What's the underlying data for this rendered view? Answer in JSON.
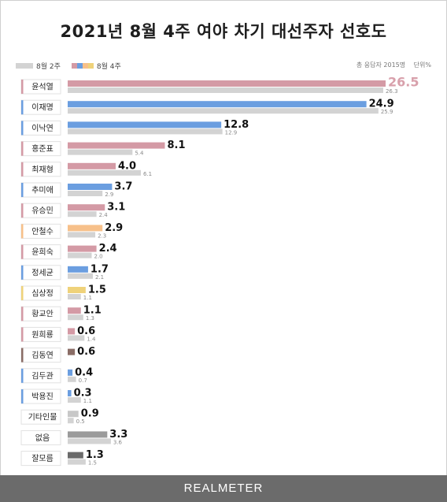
{
  "title": "2021년 8월 4주 여야 차기 대선주자 선호도",
  "legend": {
    "previous_label": "8월 2주",
    "current_label": "8월 4주"
  },
  "note": {
    "sample": "총 응답자 2015명",
    "unit": "단위%"
  },
  "footer": {
    "brand": "REALMETER"
  },
  "colors": {
    "pp": "#d49aa5",
    "dp": "#6b9ee0",
    "orange": "#f7c08a",
    "yellow": "#efd27a",
    "brown": "#8a6d66",
    "other": "#c8c8c8",
    "none": "#9b9b9b",
    "dontknow": "#6a6a6a",
    "previous": "#d3d3d3",
    "highlight": "#d8a0ab"
  },
  "chart_data": {
    "type": "bar",
    "orientation": "horizontal",
    "title": "2021년 8월 4주 여야 차기 대선주자 선호도",
    "unit": "%",
    "categories": [
      "윤석열",
      "이재명",
      "이낙연",
      "홍준표",
      "최재형",
      "추미애",
      "유승민",
      "안철수",
      "윤희숙",
      "정세균",
      "심상정",
      "황교안",
      "원희룡",
      "김동연",
      "김두관",
      "박용진",
      "기타인물",
      "없음",
      "잘모름"
    ],
    "series": [
      {
        "name": "8월 4주",
        "values": [
          26.5,
          24.9,
          12.8,
          8.1,
          4.0,
          3.7,
          3.1,
          2.9,
          2.4,
          1.7,
          1.5,
          1.1,
          0.6,
          0.6,
          0.4,
          0.3,
          0.9,
          3.3,
          1.3
        ],
        "labels": [
          "26.5",
          "24.9",
          "12.8",
          "8.1",
          "4.0",
          "3.7",
          "3.1",
          "2.9",
          "2.4",
          "1.7",
          "1.5",
          "1.1",
          "0.6",
          "0.6",
          "0.4",
          "0.3",
          "0.9",
          "3.3",
          "1.3"
        ]
      },
      {
        "name": "8월 2주",
        "values": [
          26.3,
          25.9,
          12.9,
          5.4,
          6.1,
          2.9,
          2.4,
          2.3,
          2.0,
          2.1,
          1.1,
          1.3,
          1.4,
          null,
          0.7,
          1.1,
          0.5,
          3.6,
          1.5
        ],
        "labels": [
          "26.3",
          "25.9",
          "12.9",
          "5.4",
          "6.1",
          "2.9",
          "2.4",
          "2.3",
          "2.0",
          "2.1",
          "1.1",
          "1.3",
          "1.4",
          "",
          "0.7",
          "1.1",
          "0.5",
          "3.6",
          "1.5"
        ]
      }
    ],
    "bar_colors": [
      "pp",
      "dp",
      "dp",
      "pp",
      "pp",
      "dp",
      "pp",
      "orange",
      "pp",
      "dp",
      "yellow",
      "pp",
      "pp",
      "brown",
      "dp",
      "dp",
      "other",
      "none",
      "dontknow"
    ],
    "marker_colors": [
      "pp",
      "dp",
      "dp",
      "pp",
      "pp",
      "dp",
      "pp",
      "orange",
      "pp",
      "dp",
      "yellow",
      "pp",
      "pp",
      "brown",
      "dp",
      "dp",
      "",
      "",
      ""
    ],
    "xlim": [
      0,
      26.5
    ],
    "grid": false,
    "legend_position": "top-left"
  }
}
